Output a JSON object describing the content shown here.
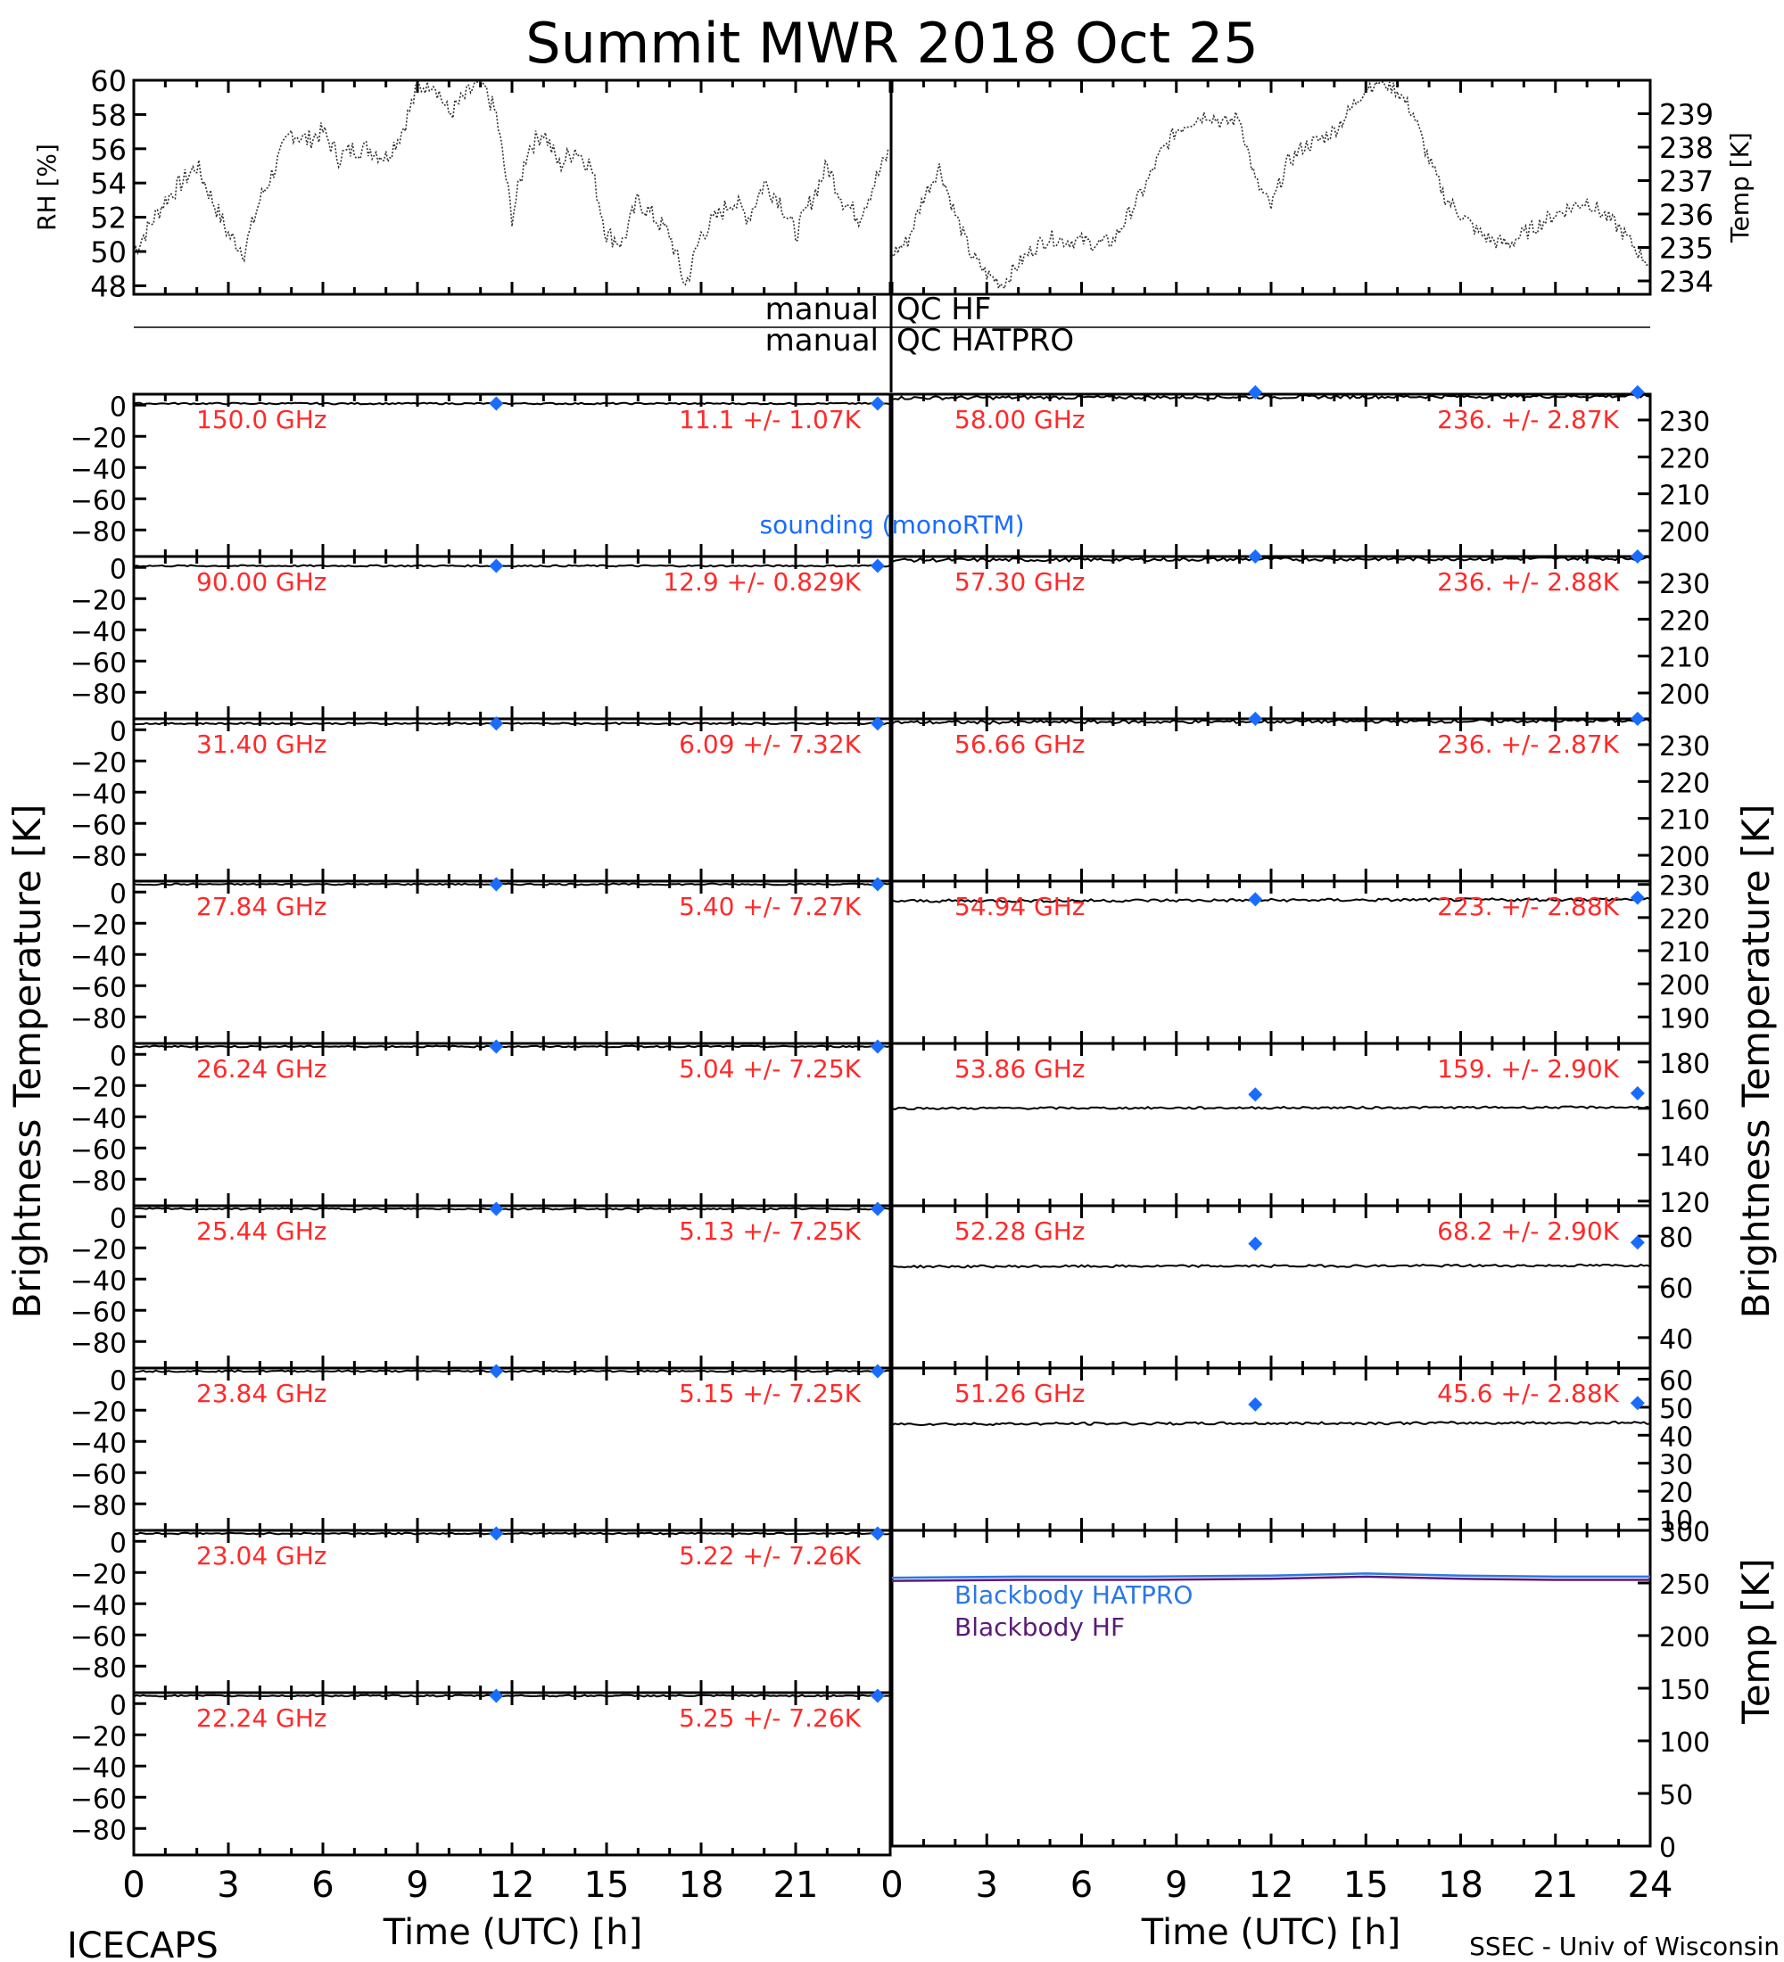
{
  "title": "Summit MWR 2018 Oct 25",
  "footer_left": "ICECAPS",
  "footer_right": "SSEC - Univ of Wisconsin",
  "colors": {
    "frame": "#000000",
    "channel_label": "#ff2a2a",
    "sounding": "#1a6cff",
    "bb_hatpro": "#2b78e4",
    "bb_hf": "#5a1a78"
  },
  "chart_data": [
    {
      "id": "met",
      "type": "line",
      "left": {
        "ylabel": "RH [%]",
        "ylim": [
          47.5,
          60
        ],
        "ticks": [
          48,
          50,
          52,
          54,
          56,
          58,
          60
        ]
      },
      "right": {
        "ylabel": "Temp [K]",
        "ylim": [
          233.6,
          240
        ],
        "ticks": [
          234,
          235,
          236,
          237,
          238,
          239
        ]
      },
      "xlim": [
        0,
        24
      ],
      "rh_series": {
        "x": [
          0,
          0.5,
          1,
          1.5,
          2,
          2.5,
          3,
          3.5,
          4,
          4.5,
          5,
          5.5,
          6,
          6.5,
          7,
          7.5,
          8,
          8.5,
          9,
          9.5,
          10,
          10.5,
          11,
          11.5,
          12,
          12.5,
          13,
          13.5,
          14,
          14.5,
          15,
          15.5,
          16,
          16.5,
          17,
          17.5,
          18,
          18.5,
          19,
          19.5,
          20,
          20.5,
          21,
          21.5,
          22,
          22.5,
          23,
          23.5,
          24
        ],
        "y": [
          50,
          51.5,
          53,
          54,
          55,
          53,
          51,
          50,
          53,
          55,
          57,
          56.5,
          57,
          55.5,
          56,
          56,
          55.5,
          57,
          59.5,
          60,
          58,
          59,
          60,
          58,
          52,
          56,
          57,
          55,
          56,
          55,
          51,
          50.5,
          53,
          52,
          51,
          48,
          51,
          52,
          53,
          52,
          54,
          53,
          51,
          53,
          55,
          53,
          52,
          54,
          56
        ]
      },
      "temp_series": {
        "x": [
          0,
          0.5,
          1,
          1.5,
          2,
          2.5,
          3,
          3.5,
          4,
          4.5,
          5,
          5.5,
          6,
          6.5,
          7,
          7.5,
          8,
          8.5,
          9,
          9.5,
          10,
          10.5,
          11,
          11.5,
          12,
          12.5,
          13,
          13.5,
          14,
          14.5,
          15,
          15.5,
          16,
          16.5,
          17,
          17.5,
          18,
          18.5,
          19,
          19.5,
          20,
          20.5,
          21,
          21.5,
          22,
          22.5,
          23,
          23.5,
          24
        ],
        "y": [
          234.8,
          235.2,
          236.5,
          237.4,
          236,
          234.8,
          234.2,
          233.9,
          234.5,
          235,
          235.3,
          235.2,
          235.2,
          235.1,
          235.2,
          236,
          236.8,
          237.8,
          238.5,
          238.8,
          239,
          238.7,
          238.9,
          237,
          236.2,
          237.5,
          238,
          238.2,
          238.5,
          239.1,
          239.8,
          240,
          239.7,
          239,
          237.6,
          236.5,
          236,
          235.5,
          235.2,
          235.1,
          235.4,
          235.7,
          236,
          236.2,
          236.4,
          236,
          235.6,
          235,
          234.5
        ]
      }
    },
    {
      "type": "line",
      "id": "qc",
      "xlim": [
        0,
        24
      ],
      "labels": [
        "manual",
        "QC HF",
        "manual",
        "QC HATPRO"
      ]
    },
    {
      "type": "line",
      "id": "hf_channels",
      "xlim": [
        0,
        24
      ],
      "ylim": [
        -97,
        7
      ],
      "yticks": [
        0,
        -20,
        -40,
        -60,
        -80
      ],
      "ylabel": "Brightness Temperature [K]",
      "series_label": "sounding (monoRTM)",
      "channels": [
        {
          "freq": "150.0 GHz",
          "stat": "11.1 +/-  1.07K",
          "line_y": 1,
          "sounding": [
            [
              11.5,
              1
            ],
            [
              23.6,
              1
            ]
          ]
        },
        {
          "freq": "90.00 GHz",
          "stat": "12.9 +/- 0.829K",
          "line_y": 1,
          "sounding": [
            [
              11.5,
              1
            ],
            [
              23.6,
              1
            ]
          ]
        },
        {
          "freq": "31.40 GHz",
          "stat": "6.09 +/- 7.32K",
          "line_y": 4,
          "sounding": [
            [
              11.5,
              4
            ],
            [
              23.6,
              4
            ]
          ]
        },
        {
          "freq": "27.84 GHz",
          "stat": "5.40 +/- 7.27K",
          "line_y": 5,
          "sounding": [
            [
              11.5,
              5
            ],
            [
              23.6,
              5
            ]
          ]
        },
        {
          "freq": "26.24 GHz",
          "stat": "5.04 +/- 7.25K",
          "line_y": 5,
          "sounding": [
            [
              11.5,
              5
            ],
            [
              23.6,
              5
            ]
          ]
        },
        {
          "freq": "25.44 GHz",
          "stat": "5.13 +/- 7.25K",
          "line_y": 5,
          "sounding": [
            [
              11.5,
              5
            ],
            [
              23.6,
              5
            ]
          ]
        },
        {
          "freq": "23.84 GHz",
          "stat": "5.15 +/- 7.25K",
          "line_y": 5,
          "sounding": [
            [
              11.5,
              5
            ],
            [
              23.6,
              5
            ]
          ]
        },
        {
          "freq": "23.04 GHz",
          "stat": "5.22 +/- 7.26K",
          "line_y": 5,
          "sounding": [
            [
              11.5,
              5
            ],
            [
              23.6,
              5
            ]
          ]
        },
        {
          "freq": "22.24 GHz",
          "stat": "5.25 +/- 7.26K",
          "line_y": 5,
          "sounding": [
            [
              11.5,
              5
            ],
            [
              23.6,
              5
            ]
          ]
        }
      ],
      "xticks": [
        0,
        3,
        6,
        9,
        12,
        15,
        18,
        21
      ],
      "xlabel": "Time (UTC) [h]"
    },
    {
      "type": "line",
      "id": "hatpro_channels",
      "xlim": [
        0,
        24
      ],
      "ylabel": "Brightness Temperature [K]",
      "channels": [
        {
          "freq": "58.00 GHz",
          "stat": "236. +/- 2.87K",
          "ylim": [
            193,
            237
          ],
          "yticks": [
            200,
            210,
            220,
            230
          ],
          "line_y": 236,
          "sounding": [
            [
              11.5,
              237.5
            ],
            [
              23.6,
              237.5
            ]
          ]
        },
        {
          "freq": "57.30 GHz",
          "stat": "236. +/- 2.88K",
          "ylim": [
            193,
            237
          ],
          "yticks": [
            200,
            210,
            220,
            230
          ],
          "line_y": 236,
          "sounding": [
            [
              11.5,
              237
            ],
            [
              23.6,
              237
            ]
          ]
        },
        {
          "freq": "56.66 GHz",
          "stat": "236. +/- 2.87K",
          "ylim": [
            193,
            237
          ],
          "yticks": [
            200,
            210,
            220,
            230
          ],
          "line_y": 236,
          "sounding": [
            [
              11.5,
              237
            ],
            [
              23.6,
              237
            ]
          ]
        },
        {
          "freq": "54.94 GHz",
          "stat": "223. +/- 2.88K",
          "ylim": [
            182,
            231
          ],
          "yticks": [
            190,
            200,
            210,
            220,
            230
          ],
          "line_y": 225,
          "sounding": [
            [
              11.5,
              225.5
            ],
            [
              23.6,
              226
            ]
          ]
        },
        {
          "freq": "53.86 GHz",
          "stat": "159. +/- 2.90K",
          "ylim": [
            118,
            188
          ],
          "yticks": [
            120,
            140,
            160,
            180
          ],
          "line_y": 160,
          "sounding": [
            [
              11.5,
              166
            ],
            [
              23.6,
              166.5
            ]
          ]
        },
        {
          "freq": "52.28 GHz",
          "stat": "68.2 +/- 2.90K",
          "ylim": [
            28,
            92
          ],
          "yticks": [
            40,
            60,
            80
          ],
          "line_y": 68,
          "sounding": [
            [
              11.5,
              77
            ],
            [
              23.6,
              77.5
            ]
          ]
        },
        {
          "freq": "51.26 GHz",
          "stat": "45.6 +/- 2.88K",
          "ylim": [
            6,
            64
          ],
          "yticks": [
            10,
            20,
            30,
            40,
            50,
            60
          ],
          "line_y": 44,
          "sounding": [
            [
              11.5,
              51
            ],
            [
              23.6,
              51.5
            ]
          ]
        }
      ]
    },
    {
      "type": "line",
      "id": "blackbody",
      "xlim": [
        0,
        24
      ],
      "ylim": [
        0,
        300
      ],
      "yticks": [
        0,
        50,
        100,
        150,
        200,
        250,
        300
      ],
      "ylabel": "Temp [K]",
      "series": [
        {
          "name": "Blackbody HATPRO",
          "x": [
            0,
            4,
            8,
            12,
            15,
            18,
            21,
            24
          ],
          "y": [
            255,
            256,
            256,
            257,
            259,
            257,
            256,
            256
          ]
        },
        {
          "name": "Blackbody HF",
          "x": [
            0,
            4,
            8,
            12,
            15,
            18,
            21,
            24
          ],
          "y": [
            252,
            253,
            253,
            254,
            256,
            254,
            253,
            253
          ]
        }
      ],
      "xticks": [
        0,
        3,
        6,
        9,
        12,
        15,
        18,
        21,
        24
      ],
      "xlabel": "Time (UTC) [h]"
    }
  ]
}
